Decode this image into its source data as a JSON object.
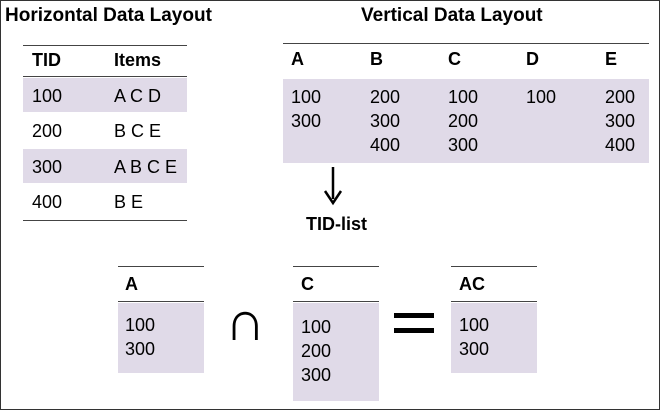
{
  "horizontal": {
    "title": "Horizontal Data Layout",
    "headers": [
      "TID",
      "Items"
    ],
    "rows": [
      {
        "tid": "100",
        "items": "A C D"
      },
      {
        "tid": "200",
        "items": "B C E"
      },
      {
        "tid": "300",
        "items": "A B C E"
      },
      {
        "tid": "400",
        "items": "B E"
      }
    ]
  },
  "vertical": {
    "title": "Vertical Data Layout",
    "columns": [
      {
        "name": "A",
        "tids": "100\n300"
      },
      {
        "name": "B",
        "tids": "200\n300\n400"
      },
      {
        "name": "C",
        "tids": "100\n200\n300"
      },
      {
        "name": "D",
        "tids": "100"
      },
      {
        "name": "E",
        "tids": "200\n300\n400"
      }
    ]
  },
  "tid_list": {
    "label": "TID-list",
    "operands": [
      {
        "name": "A",
        "tids": "100\n300"
      },
      {
        "name": "C",
        "tids": "100\n200\n300"
      },
      {
        "name": "AC",
        "tids": "100\n300"
      }
    ],
    "intersect_symbol": "∩",
    "equals_symbol": "="
  },
  "colors": {
    "band": "#e0dae8",
    "rule": "#444444",
    "text": "#000000"
  }
}
